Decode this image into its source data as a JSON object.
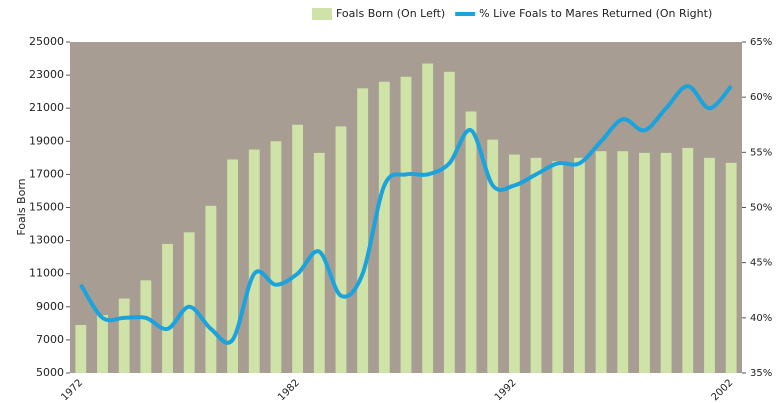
{
  "chart_data": {
    "type": "bar-line",
    "y_label": "Foals Born",
    "categories": [
      "1972",
      null,
      null,
      null,
      null,
      null,
      null,
      null,
      null,
      null,
      "1982",
      null,
      null,
      null,
      null,
      null,
      null,
      null,
      null,
      null,
      "1992",
      null,
      null,
      null,
      null,
      null,
      null,
      null,
      null,
      null,
      "2002"
    ],
    "series": [
      {
        "name": "Foals Born (On Left)",
        "color": "#cfe3a9",
        "type": "bar",
        "values": [
          7900,
          8500,
          9500,
          10600,
          12800,
          13500,
          15100,
          17900,
          18500,
          19000,
          20000,
          18300,
          19900,
          22200,
          22600,
          22900,
          23700,
          23200,
          20800,
          19100,
          18200,
          18000,
          17800,
          18000,
          18400,
          18400,
          18300,
          18300,
          18600,
          18000,
          17700
        ]
      },
      {
        "name": "% Live Foals to Mares Returned (On Right)",
        "color": "#1aa3dc",
        "type": "line",
        "axis": "y2",
        "values": [
          43,
          40,
          40,
          40,
          39,
          41,
          39,
          38,
          44,
          43,
          44,
          46,
          42,
          44,
          52,
          53,
          53,
          54,
          57,
          52,
          52,
          53,
          54,
          54,
          56,
          58,
          57,
          59,
          61,
          59,
          61
        ]
      }
    ],
    "ylim": [
      5000,
      25000
    ],
    "yticks": [
      5000,
      7000,
      9000,
      11000,
      13000,
      15000,
      17000,
      19000,
      21000,
      23000,
      25000
    ],
    "y2lim": [
      35,
      65
    ],
    "y2ticks": [
      {
        "value": 35,
        "label": "35%"
      },
      {
        "value": 40,
        "label": "40%"
      },
      {
        "value": 45,
        "label": "45%"
      },
      {
        "value": 50,
        "label": "50%"
      },
      {
        "value": 55,
        "label": "55%"
      },
      {
        "value": 60,
        "label": "60%"
      },
      {
        "value": 65,
        "label": "65%"
      }
    ],
    "plot_background": "#a89d92",
    "legend": "top-right"
  }
}
